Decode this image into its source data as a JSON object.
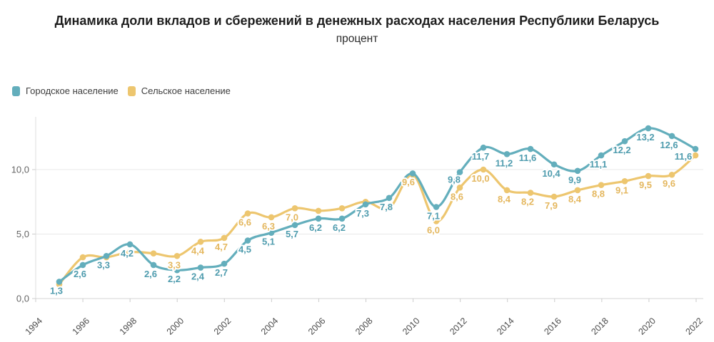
{
  "title": "Динамика доли вкладов и сбережений в денежных расходах населения Республики Беларусь",
  "subtitle": "процент",
  "legend": {
    "items": [
      {
        "label": "Городское население",
        "color": "#63aebc"
      },
      {
        "label": "Сельское население",
        "color": "#edc66f"
      }
    ]
  },
  "chart_data": {
    "type": "line",
    "x": [
      1995,
      1996,
      1997,
      1998,
      1999,
      2000,
      2001,
      2002,
      2003,
      2004,
      2005,
      2006,
      2007,
      2008,
      2009,
      2010,
      2011,
      2012,
      2013,
      2014,
      2015,
      2016,
      2017,
      2018,
      2019,
      2020,
      2021,
      2022
    ],
    "xtick_labels": [
      "1994",
      "1996",
      "1998",
      "2000",
      "2002",
      "2004",
      "2006",
      "2008",
      "2010",
      "2012",
      "2014",
      "2016",
      "2018",
      "2020",
      "2022"
    ],
    "ytick_labels": [
      "0,0",
      "5,0",
      "10,0"
    ],
    "ytick_values": [
      0,
      5,
      10
    ],
    "ylim": [
      0,
      14.8
    ],
    "grid": "horizontal",
    "legend_position": "top-left",
    "series": [
      {
        "name": "Городское население",
        "color": "#63aebc",
        "label_color": "#4f9cae",
        "values": [
          1.3,
          2.6,
          3.3,
          4.2,
          2.6,
          2.2,
          2.4,
          2.7,
          4.5,
          5.1,
          5.7,
          6.2,
          6.2,
          7.3,
          7.8,
          9.7,
          7.1,
          9.8,
          11.7,
          11.2,
          11.6,
          10.4,
          9.9,
          11.1,
          12.2,
          13.2,
          12.6,
          11.6
        ],
        "labels": [
          "1,3",
          "2,6",
          "3,3",
          "4,2",
          "2,6",
          "2,2",
          "2,4",
          "2,7",
          "4,5",
          "5,1",
          "5,7",
          "6,2",
          "6,2",
          "7,3",
          "7,8",
          null,
          "7,1",
          "9,8",
          "11,7",
          "11,2",
          "11,6",
          "10,4",
          "9,9",
          "11,1",
          "12,2",
          "13,2",
          "12,6",
          "11,6"
        ],
        "label_offset": [
          -4,
          17
        ],
        "label_offsets": {
          "17": [
            -8,
            15
          ],
          "27": [
            -17,
            15
          ]
        }
      },
      {
        "name": "Сельское население",
        "color": "#edc66f",
        "label_color": "#e4b75e",
        "values": [
          1.1,
          3.2,
          3.2,
          3.6,
          3.5,
          3.3,
          4.4,
          4.7,
          6.6,
          6.3,
          7.0,
          6.8,
          7.0,
          7.5,
          7.0,
          9.6,
          6.0,
          8.6,
          10.0,
          8.4,
          8.2,
          7.9,
          8.4,
          8.8,
          9.1,
          9.5,
          9.6,
          11.1
        ],
        "labels": [
          null,
          null,
          null,
          null,
          null,
          "3,3",
          "4,4",
          "4,7",
          "6,6",
          "6,3",
          "7,0",
          null,
          null,
          null,
          null,
          "9,6",
          "6,0",
          "8,6",
          "10,0",
          "8,4",
          "8,2",
          "7,9",
          "8,4",
          "8,8",
          "9,1",
          "9,5",
          "9,6",
          null
        ],
        "label_offset": [
          -4,
          17
        ],
        "label_offsets": {
          "15": [
            -6,
            15
          ]
        }
      }
    ]
  }
}
